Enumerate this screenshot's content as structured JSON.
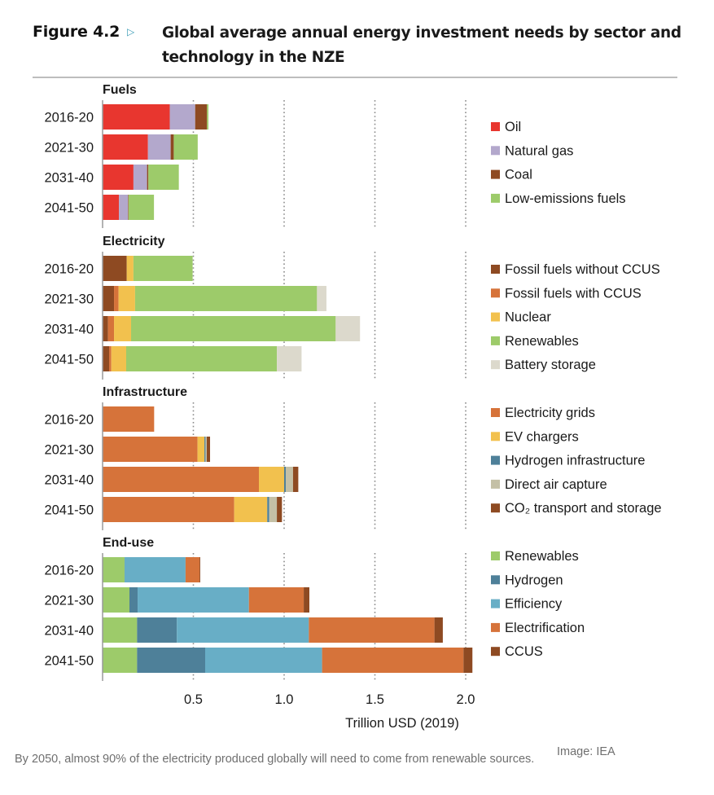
{
  "figure": {
    "label": "Figure 4.2",
    "marker_icon": "triangle-right-icon",
    "title": "Global average annual energy investment needs by sector and technology in the NZE"
  },
  "caption": "By 2050, almost 90% of the electricity produced globally will need to come from renewable sources.",
  "credit": "Image: IEA",
  "chart_data": {
    "type": "bar",
    "orientation": "horizontal",
    "stacked": true,
    "title": "Global average annual energy investment needs by sector and technology in the NZE",
    "xlabel": "Trillion USD (2019)",
    "ylabel": "",
    "xlim": [
      0,
      2.05
    ],
    "xticks": [
      0.5,
      1.0,
      1.5,
      2.0
    ],
    "xtick_labels": [
      "0.5",
      "1.0",
      "1.5",
      "2.0"
    ],
    "grid": "vertical dotted",
    "legend_position": "right",
    "categories": [
      "2016-20",
      "2021-30",
      "2031-40",
      "2041-50"
    ],
    "panels": [
      {
        "name": "Fuels",
        "series": [
          {
            "name": "Oil",
            "color": "#e8362f",
            "values": [
              0.37,
              0.25,
              0.17,
              0.09
            ]
          },
          {
            "name": "Natural gas",
            "color": "#b3a8cc",
            "values": [
              0.14,
              0.125,
              0.075,
              0.05
            ]
          },
          {
            "name": "Coal",
            "color": "#8e4a22",
            "values": [
              0.065,
              0.017,
              0.007,
              0.003
            ]
          },
          {
            "name": "Low-emissions fuels",
            "color": "#9dcb6a",
            "values": [
              0.008,
              0.132,
              0.168,
              0.14
            ]
          }
        ]
      },
      {
        "name": "Electricity",
        "series": [
          {
            "name": "Fossil fuels without CCUS",
            "color": "#8e4a22",
            "values": [
              0.133,
              0.063,
              0.03,
              0.036
            ]
          },
          {
            "name": "Fossil fuels with CCUS",
            "color": "#d6733a",
            "values": [
              0.0,
              0.025,
              0.033,
              0.012
            ]
          },
          {
            "name": "Nuclear",
            "color": "#f2c14e",
            "values": [
              0.037,
              0.091,
              0.094,
              0.082
            ]
          },
          {
            "name": "Renewables",
            "color": "#9dcb6a",
            "values": [
              0.326,
              1.002,
              1.127,
              0.83
            ]
          },
          {
            "name": "Battery storage",
            "color": "#dcd9cc",
            "values": [
              0.0,
              0.052,
              0.134,
              0.136
            ]
          }
        ]
      },
      {
        "name": "Infrastructure",
        "series": [
          {
            "name": "Electricity grids",
            "color": "#d6733a",
            "values": [
              0.284,
              0.523,
              0.861,
              0.725
            ]
          },
          {
            "name": "EV chargers",
            "color": "#f2c14e",
            "values": [
              0.0,
              0.038,
              0.139,
              0.182
            ]
          },
          {
            "name": "Hydrogen infrastructure",
            "color": "#4e8099",
            "values": [
              0.0,
              0.006,
              0.009,
              0.011
            ]
          },
          {
            "name": "Direct air capture",
            "color": "#c4c0a6",
            "values": [
              0.0,
              0.007,
              0.04,
              0.042
            ]
          },
          {
            "name": "CO₂ transport and storage",
            "color": "#8e4a22",
            "values": [
              0.0,
              0.018,
              0.029,
              0.028
            ]
          }
        ]
      },
      {
        "name": "End-use",
        "series": [
          {
            "name": "Renewables",
            "color": "#9dcb6a",
            "values": [
              0.121,
              0.148,
              0.19,
              0.19
            ]
          },
          {
            "name": "Hydrogen",
            "color": "#4e8099",
            "values": [
              0.0,
              0.045,
              0.219,
              0.375
            ]
          },
          {
            "name": "Efficiency",
            "color": "#68aec6",
            "values": [
              0.336,
              0.613,
              0.727,
              0.644
            ]
          },
          {
            "name": "Electrification",
            "color": "#d6733a",
            "values": [
              0.077,
              0.302,
              0.692,
              0.779
            ]
          },
          {
            "name": "CCUS",
            "color": "#8e4a22",
            "values": [
              0.004,
              0.031,
              0.046,
              0.049
            ]
          }
        ]
      }
    ]
  }
}
